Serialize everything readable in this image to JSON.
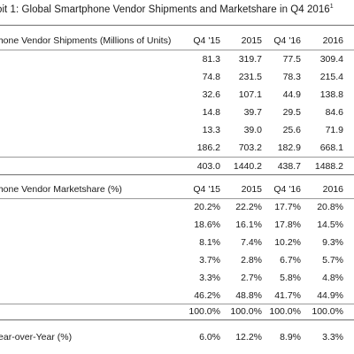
{
  "title": "oit 1: Global Smartphone Vendor Shipments and Marketshare in Q4 2016",
  "title_footnote": "1",
  "shipments": {
    "header_label": "phone Vendor Shipments (Millions of Units)",
    "columns": [
      "Q4 '15",
      "2015",
      "Q4 '16",
      "2016"
    ],
    "rows": [
      [
        "81.3",
        "319.7",
        "77.5",
        "309.4"
      ],
      [
        "74.8",
        "231.5",
        "78.3",
        "215.4"
      ],
      [
        "32.6",
        "107.1",
        "44.9",
        "138.8"
      ],
      [
        "14.8",
        "39.7",
        "29.5",
        "84.6"
      ],
      [
        "13.3",
        "39.0",
        "25.6",
        "71.9"
      ],
      [
        "186.2",
        "703.2",
        "182.9",
        "668.1"
      ]
    ],
    "total": [
      "403.0",
      "1440.2",
      "438.7",
      "1488.2"
    ]
  },
  "marketshare": {
    "header_label": "phone Vendor Marketshare (%)",
    "columns": [
      "Q4 '15",
      "2015",
      "Q4 '16",
      "2016"
    ],
    "rows": [
      [
        "20.2%",
        "22.2%",
        "17.7%",
        "20.8%"
      ],
      [
        "18.6%",
        "16.1%",
        "17.8%",
        "14.5%"
      ],
      [
        "8.1%",
        "7.4%",
        "10.2%",
        "9.3%"
      ],
      [
        "3.7%",
        "2.8%",
        "6.7%",
        "5.7%"
      ],
      [
        "3.3%",
        "2.7%",
        "5.8%",
        "4.8%"
      ],
      [
        "46.2%",
        "48.8%",
        "41.7%",
        "44.9%"
      ]
    ],
    "total": [
      "100.0%",
      "100.0%",
      "100.0%",
      "100.0%"
    ]
  },
  "yoy": {
    "label": "Year-over-Year (%)",
    "values": [
      "6.0%",
      "12.2%",
      "8.9%",
      "3.3%"
    ]
  }
}
